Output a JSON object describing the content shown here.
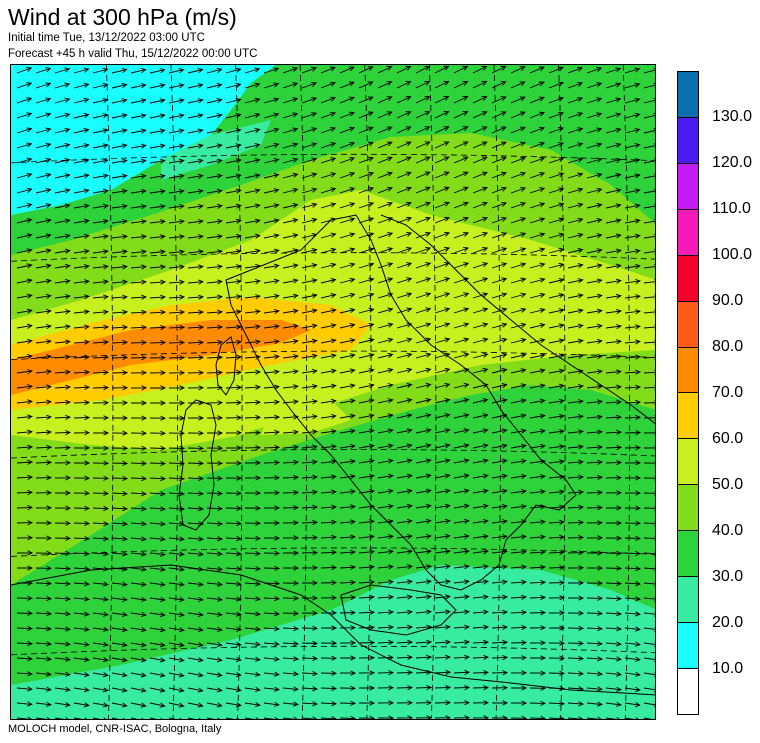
{
  "title": "Wind at 300 hPa (m/s)",
  "initial_time": "Initial time  Tue, 13/12/2022 03:00 UTC",
  "forecast": "Forecast +45 h valid  Thu, 15/12/2022 00:00 UTC",
  "footer": "MOLOCH model, CNR-ISAC, Bologna, Italy",
  "legend": {
    "labels": [
      "130.0",
      "120.0",
      "110.0",
      "100.0",
      "90.0",
      "80.0",
      "70.0",
      "60.0",
      "50.0",
      "40.0",
      "30.0",
      "20.0",
      "10.0"
    ],
    "colors": [
      "#0a6faf",
      "#4d1bf5",
      "#c41bf5",
      "#f51bb8",
      "#f5002b",
      "#ff5a1a",
      "#ff8c00",
      "#ffcc00",
      "#c8f01e",
      "#82dc19",
      "#2ed23a",
      "#37eba0",
      "#19ffff",
      "#ffffff"
    ]
  },
  "colors": {
    "ws_10_20": "#19ffff",
    "ws_20_30": "#37eba0",
    "ws_30_40": "#2ed23a",
    "ws_40_50": "#82dc19",
    "ws_50_60": "#c8f01e",
    "ws_60_70": "#ffcc00",
    "ws_70_80": "#ff8c00"
  }
}
